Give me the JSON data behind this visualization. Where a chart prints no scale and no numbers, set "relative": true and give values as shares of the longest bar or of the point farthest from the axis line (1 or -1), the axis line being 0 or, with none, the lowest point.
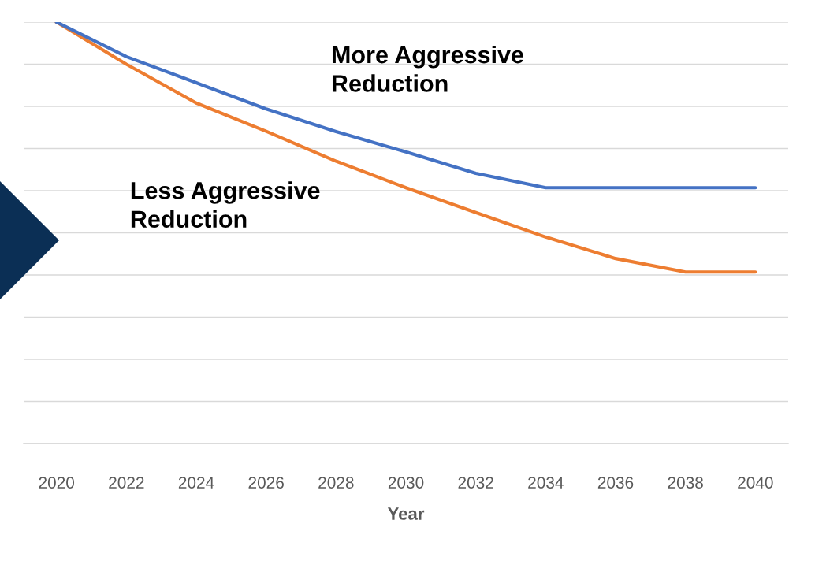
{
  "chart_data": {
    "type": "line",
    "relative": true,
    "xlabel": "Year",
    "categories": [
      "2020",
      "2022",
      "2024",
      "2026",
      "2028",
      "2030",
      "2032",
      "2034",
      "2036",
      "2038",
      "2040"
    ],
    "series": [
      {
        "name": "More Aggressive Reduction",
        "color": "#4472c4",
        "values": [
          1,
          0.918,
          0.856,
          0.794,
          0.74,
          0.692,
          0.641,
          0.607,
          0.607,
          0.607,
          0.607
        ]
      },
      {
        "name": "Less Aggressive Reduction",
        "color": "#ed7d31",
        "values": [
          1,
          0.9,
          0.808,
          0.741,
          0.67,
          0.607,
          0.548,
          0.49,
          0.439,
          0.407,
          0.407
        ]
      }
    ],
    "grid": "y",
    "legend": false,
    "marker": "none",
    "line_style": "solid"
  }
}
